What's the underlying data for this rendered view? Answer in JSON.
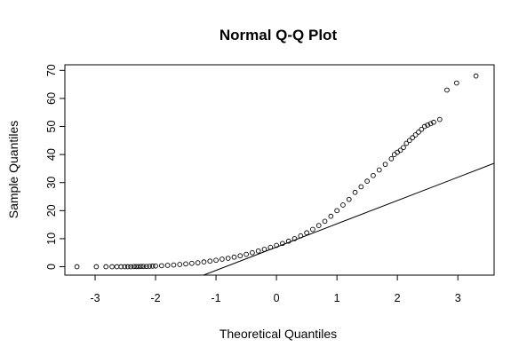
{
  "chart_data": {
    "type": "scatter",
    "title": "Normal Q-Q Plot",
    "xlabel": "Theoretical Quantiles",
    "ylabel": "Sample Quantiles",
    "xlim": [
      -3.5,
      3.6
    ],
    "ylim": [
      -3,
      72
    ],
    "x_ticks": [
      "-3",
      "-2",
      "-1",
      "0",
      "1",
      "2",
      "3"
    ],
    "y_ticks": [
      "0",
      "10",
      "20",
      "30",
      "40",
      "50",
      "60",
      "70"
    ],
    "grid": false,
    "marker": "open-circle",
    "color": "#000000",
    "reference_line": {
      "slope": 8.3,
      "intercept": 7.0
    },
    "series": [
      {
        "x": [
          -3.3,
          -2.98,
          -2.82,
          -2.72,
          -2.64,
          -2.57,
          -2.51,
          -2.46,
          -2.41,
          -2.36,
          -2.32,
          -2.28,
          -2.24,
          -2.2,
          -2.15,
          -2.1,
          -2.05,
          -2.0,
          -1.9,
          -1.8,
          -1.7,
          -1.6,
          -1.5,
          -1.4,
          -1.3,
          -1.2,
          -1.1,
          -1.0,
          -0.9,
          -0.8,
          -0.7,
          -0.6,
          -0.5,
          -0.4,
          -0.3,
          -0.2,
          -0.1,
          0.0,
          0.1,
          0.2,
          0.3,
          0.4,
          0.5,
          0.6,
          0.7,
          0.8,
          0.9,
          1.0,
          1.1,
          1.2,
          1.3,
          1.4,
          1.5,
          1.6,
          1.7,
          1.8,
          1.9,
          1.95,
          2.0,
          2.05,
          2.1,
          2.15,
          2.2,
          2.25,
          2.3,
          2.35,
          2.4,
          2.45,
          2.5,
          2.55,
          2.6,
          2.7,
          2.82,
          2.98,
          3.3
        ],
        "y": [
          0.0,
          0.0,
          0.0,
          0.0,
          0.0,
          0.0,
          0.0,
          0.0,
          0.0,
          0.05,
          0.05,
          0.05,
          0.1,
          0.1,
          0.1,
          0.15,
          0.2,
          0.25,
          0.35,
          0.5,
          0.6,
          0.8,
          1.0,
          1.2,
          1.4,
          1.7,
          2.0,
          2.3,
          2.7,
          3.0,
          3.4,
          3.9,
          4.4,
          5.0,
          5.6,
          6.2,
          6.9,
          7.6,
          8.3,
          9.1,
          10.0,
          11.0,
          12.1,
          13.3,
          14.7,
          16.2,
          18.0,
          20.0,
          22.0,
          24.0,
          26.5,
          28.5,
          30.5,
          32.5,
          34.5,
          36.5,
          38.5,
          40.0,
          40.8,
          41.5,
          42.5,
          44.0,
          45.0,
          46.0,
          47.0,
          48.0,
          49.0,
          50.0,
          50.5,
          51.0,
          51.5,
          52.5,
          63.0,
          65.5,
          68.0
        ]
      }
    ]
  }
}
